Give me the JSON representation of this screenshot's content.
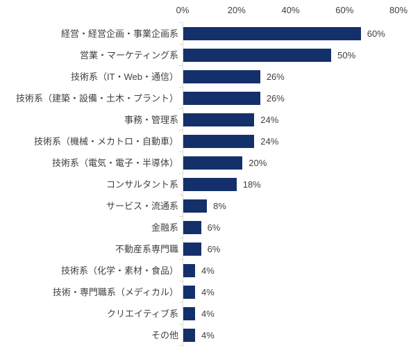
{
  "chart_data": {
    "type": "bar",
    "orientation": "horizontal",
    "title": "",
    "categories": [
      "経営・経営企画・事業企画系",
      "営業・マーケティング系",
      "技術系（IT・Web・通信）",
      "技術系（建築・設備・土木・プラント）",
      "事務・管理系",
      "技術系（機械・メカトロ・自動車）",
      "技術系（電気・電子・半導体）",
      "コンサルタント系",
      "サービス・流通系",
      "金融系",
      "不動産系専門職",
      "技術系（化学・素材・食品）",
      "技術・専門職系（メディカル）",
      "クリエイティブ系",
      "その他"
    ],
    "values": [
      60,
      50,
      26,
      26,
      24,
      24,
      20,
      18,
      8,
      6,
      6,
      4,
      4,
      4,
      4
    ],
    "value_labels": [
      "60%",
      "50%",
      "26%",
      "26%",
      "24%",
      "24%",
      "20%",
      "18%",
      "8%",
      "6%",
      "6%",
      "4%",
      "4%",
      "4%",
      "4%"
    ],
    "xlabel": "",
    "ylabel": "",
    "xlim": [
      0,
      80
    ],
    "x_tick_labels": [
      "0%",
      "20%",
      "40%",
      "60%",
      "80%"
    ],
    "x_tick_values": [
      0,
      20,
      40,
      60,
      80
    ],
    "grid": "off",
    "legend": "none",
    "bar_color": "#14306a",
    "axis_line_color": "#d9d9d9",
    "text_color": "#404040"
  }
}
